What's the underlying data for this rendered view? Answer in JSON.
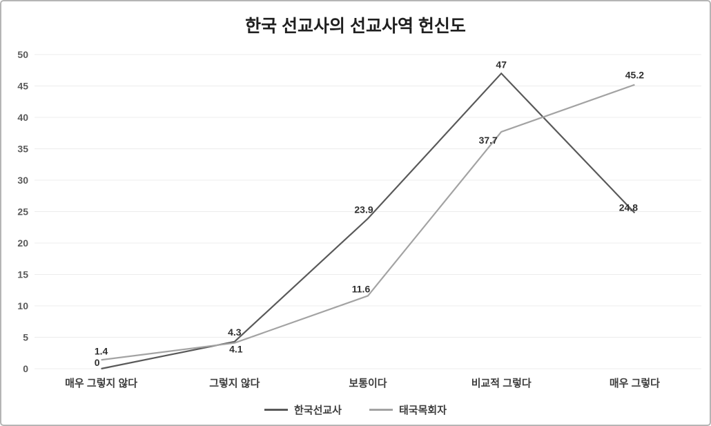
{
  "title": "한국 선교사의 선교사역 헌신도",
  "chart_data": {
    "type": "line",
    "title": "한국 선교사의 선교사역 헌신도",
    "categories": [
      "매우 그렇지 않다",
      "그렇지 않다",
      "보통이다",
      "비교적 그렇다",
      "매우 그렇다"
    ],
    "series": [
      {
        "name": "한국선교사",
        "values": [
          0,
          4.3,
          23.9,
          47,
          24.8
        ],
        "color": "#595959"
      },
      {
        "name": "태국목회자",
        "values": [
          1.4,
          4.1,
          11.6,
          37.7,
          45.2
        ],
        "color": "#a3a3a3"
      }
    ],
    "xlabel": "",
    "ylabel": "",
    "ylim": [
      0,
      50
    ],
    "ytick_step": 5,
    "grid": true,
    "grid_color": "#ececec",
    "legend_position": "bottom"
  }
}
